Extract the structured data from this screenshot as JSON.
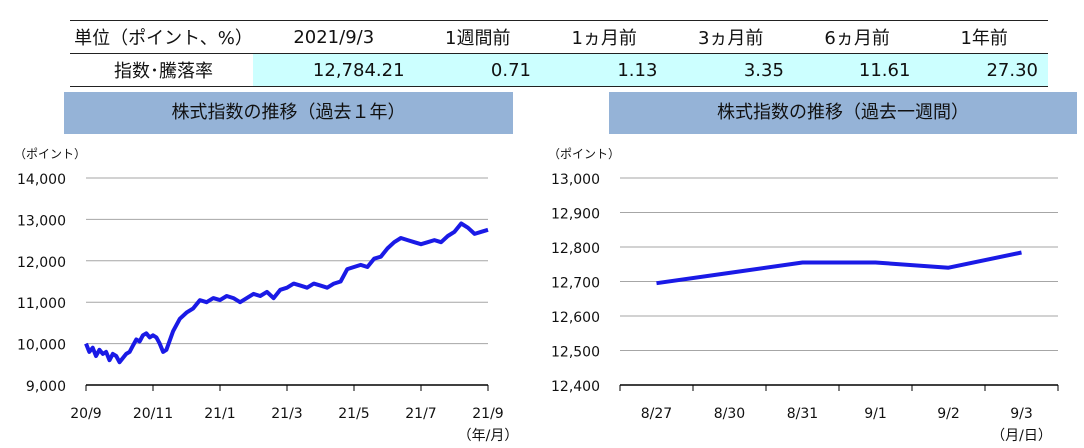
{
  "summary": {
    "header": [
      "単位（ポイント、%）",
      "2021/9/3",
      "1週間前",
      "1ヵ月前",
      "3ヵ月前",
      "6ヵ月前",
      "1年前"
    ],
    "row_label": "指数･騰落率",
    "values": [
      "12,784.21",
      "0.71",
      "1.13",
      "3.35",
      "11.61",
      "27.30"
    ]
  },
  "accent_color": "#1a1ae6",
  "chart_data": [
    {
      "type": "line",
      "title": "株式指数の推移（過去１年）",
      "ylabel": "（ポイント）",
      "xlabel": "（年/月）",
      "ylim": [
        9000,
        14000
      ],
      "yticks": [
        "14,000",
        "13,000",
        "12,000",
        "11,000",
        "10,000",
        "9,000"
      ],
      "xticks": [
        "20/9",
        "20/11",
        "21/1",
        "21/3",
        "21/5",
        "21/7",
        "21/9"
      ],
      "grid": true,
      "series": [
        {
          "x": [
            0,
            0.05,
            0.1,
            0.15,
            0.2,
            0.25,
            0.3,
            0.35,
            0.4,
            0.45,
            0.5,
            0.55,
            0.6,
            0.65,
            0.7,
            0.75,
            0.8,
            0.85,
            0.9,
            0.95,
            1.0,
            1.05,
            1.1,
            1.15,
            1.2,
            1.3,
            1.4,
            1.5,
            1.6,
            1.7,
            1.8,
            1.9,
            2.0,
            2.1,
            2.2,
            2.3,
            2.4,
            2.5,
            2.6,
            2.7,
            2.8,
            2.9,
            3.0,
            3.1,
            3.2,
            3.3,
            3.4,
            3.5,
            3.6,
            3.7,
            3.8,
            3.9,
            4.0,
            4.1,
            4.2,
            4.3,
            4.4,
            4.5,
            4.6,
            4.7,
            4.8,
            4.9,
            5.0,
            5.1,
            5.2,
            5.3,
            5.4,
            5.5,
            5.6,
            5.7,
            5.8,
            5.9,
            6.0
          ],
          "values": [
            10000,
            9800,
            9900,
            9700,
            9850,
            9750,
            9800,
            9600,
            9750,
            9700,
            9550,
            9650,
            9750,
            9800,
            9950,
            10100,
            10050,
            10200,
            10250,
            10150,
            10200,
            10150,
            10000,
            9800,
            9850,
            10300,
            10600,
            10750,
            10850,
            11050,
            11000,
            11100,
            11050,
            11150,
            11100,
            11000,
            11100,
            11200,
            11150,
            11250,
            11100,
            11300,
            11350,
            11450,
            11400,
            11350,
            11450,
            11400,
            11350,
            11450,
            11500,
            11800,
            11850,
            11900,
            11850,
            12050,
            12100,
            12300,
            12450,
            12550,
            12500,
            12450,
            12400,
            12450,
            12500,
            12450,
            12600,
            12700,
            12900,
            12800,
            12650,
            12700,
            12750
          ]
        }
      ]
    },
    {
      "type": "line",
      "title": "株式指数の推移（過去一週間）",
      "ylabel": "（ポイント）",
      "xlabel": "（月/日）",
      "ylim": [
        12400,
        13000
      ],
      "yticks": [
        "13,000",
        "12,900",
        "12,800",
        "12,700",
        "12,600",
        "12,500",
        "12,400"
      ],
      "categories": [
        "8/27",
        "8/30",
        "8/31",
        "9/1",
        "9/2",
        "9/3"
      ],
      "grid": true,
      "series": [
        {
          "values": [
            12695,
            12725,
            12755,
            12755,
            12740,
            12784
          ]
        }
      ]
    }
  ]
}
